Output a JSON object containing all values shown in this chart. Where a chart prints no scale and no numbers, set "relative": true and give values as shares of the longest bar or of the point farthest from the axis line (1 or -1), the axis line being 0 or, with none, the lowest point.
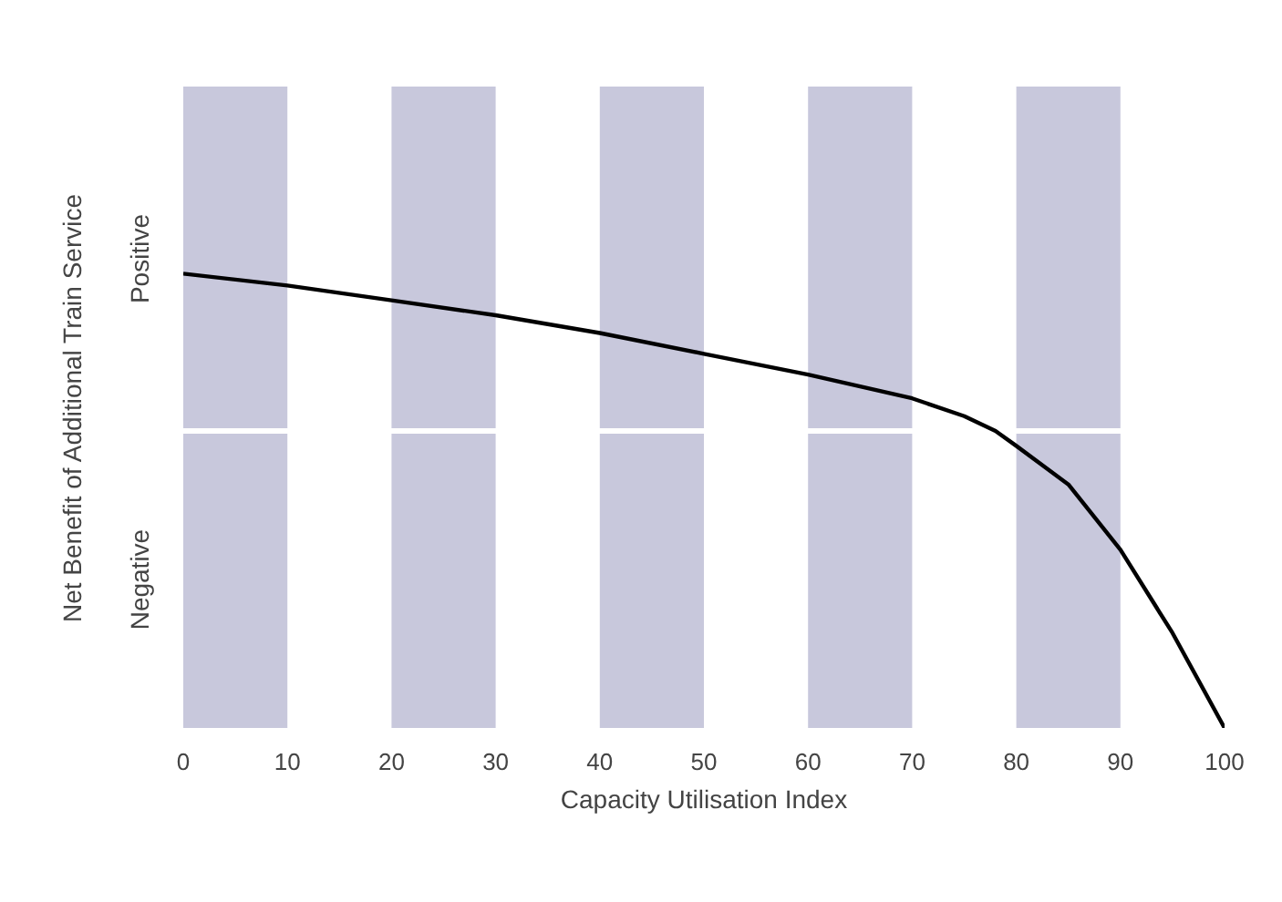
{
  "chart_data": {
    "type": "line",
    "relative": true,
    "xlabel": "Capacity Utilisation Index",
    "ylabel": "Net Benefit of Additional Train Service",
    "annotations": [
      "Positive",
      "Negative"
    ],
    "x": [
      0,
      10,
      20,
      30,
      40,
      50,
      60,
      65,
      70,
      75,
      78,
      80,
      85,
      90,
      95,
      100
    ],
    "xlim": [
      0,
      100
    ],
    "xticks": [
      0,
      10,
      20,
      30,
      40,
      50,
      60,
      70,
      80,
      90,
      100
    ],
    "series": [
      {
        "color": "#000000",
        "values": [
          0.53,
          0.49,
          0.44,
          0.39,
          0.33,
          0.26,
          0.19,
          0.15,
          0.11,
          0.05,
          0.0,
          -0.05,
          -0.18,
          -0.4,
          -0.68,
          -1.0
        ]
      }
    ],
    "bands": [
      {
        "axis": "x",
        "from": 0,
        "to": 10,
        "color": "#c8c8dc"
      },
      {
        "axis": "x",
        "from": 20,
        "to": 30,
        "color": "#c8c8dc"
      },
      {
        "axis": "x",
        "from": 40,
        "to": 50,
        "color": "#c8c8dc"
      },
      {
        "axis": "x",
        "from": 60,
        "to": 70,
        "color": "#c8c8dc"
      },
      {
        "axis": "x",
        "from": 80,
        "to": 90,
        "color": "#c8c8dc"
      }
    ],
    "grid": false,
    "marker": "none",
    "line_style": "solid"
  }
}
